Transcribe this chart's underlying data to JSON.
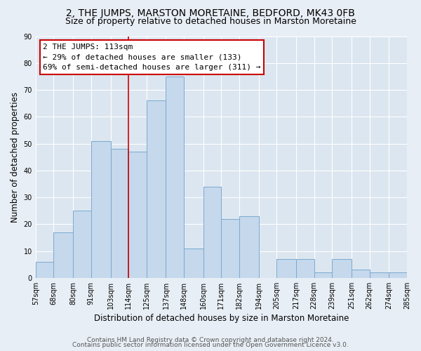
{
  "title": "2, THE JUMPS, MARSTON MORETAINE, BEDFORD, MK43 0FB",
  "subtitle": "Size of property relative to detached houses in Marston Moretaine",
  "xlabel": "Distribution of detached houses by size in Marston Moretaine",
  "ylabel": "Number of detached properties",
  "bin_labels": [
    "57sqm",
    "68sqm",
    "80sqm",
    "91sqm",
    "103sqm",
    "114sqm",
    "125sqm",
    "137sqm",
    "148sqm",
    "160sqm",
    "171sqm",
    "182sqm",
    "194sqm",
    "205sqm",
    "217sqm",
    "228sqm",
    "239sqm",
    "251sqm",
    "262sqm",
    "274sqm",
    "285sqm"
  ],
  "bar_values": [
    6,
    17,
    25,
    51,
    48,
    47,
    66,
    75,
    11,
    34,
    22,
    23,
    0,
    7,
    7,
    2,
    7,
    3,
    2,
    2
  ],
  "bin_edges": [
    57,
    68,
    80,
    91,
    103,
    114,
    125,
    137,
    148,
    160,
    171,
    182,
    194,
    205,
    217,
    228,
    239,
    251,
    262,
    274,
    285
  ],
  "bar_facecolor": "#c5d8ec",
  "bar_edgecolor": "#7baad0",
  "vline_x": 114,
  "vline_color": "#cc0000",
  "annotation_text_line1": "2 THE JUMPS: 113sqm",
  "annotation_text_line2": "← 29% of detached houses are smaller (133)",
  "annotation_text_line3": "69% of semi-detached houses are larger (311) →",
  "ylim": [
    0,
    90
  ],
  "yticks": [
    0,
    10,
    20,
    30,
    40,
    50,
    60,
    70,
    80,
    90
  ],
  "bg_color": "#e8eef5",
  "plot_bg_color": "#dce6f0",
  "grid_color": "#ffffff",
  "footer_line1": "Contains HM Land Registry data © Crown copyright and database right 2024.",
  "footer_line2": "Contains public sector information licensed under the Open Government Licence v3.0.",
  "title_fontsize": 10,
  "subtitle_fontsize": 9,
  "axis_label_fontsize": 8.5,
  "tick_fontsize": 7,
  "annotation_fontsize": 8,
  "footer_fontsize": 6.5
}
